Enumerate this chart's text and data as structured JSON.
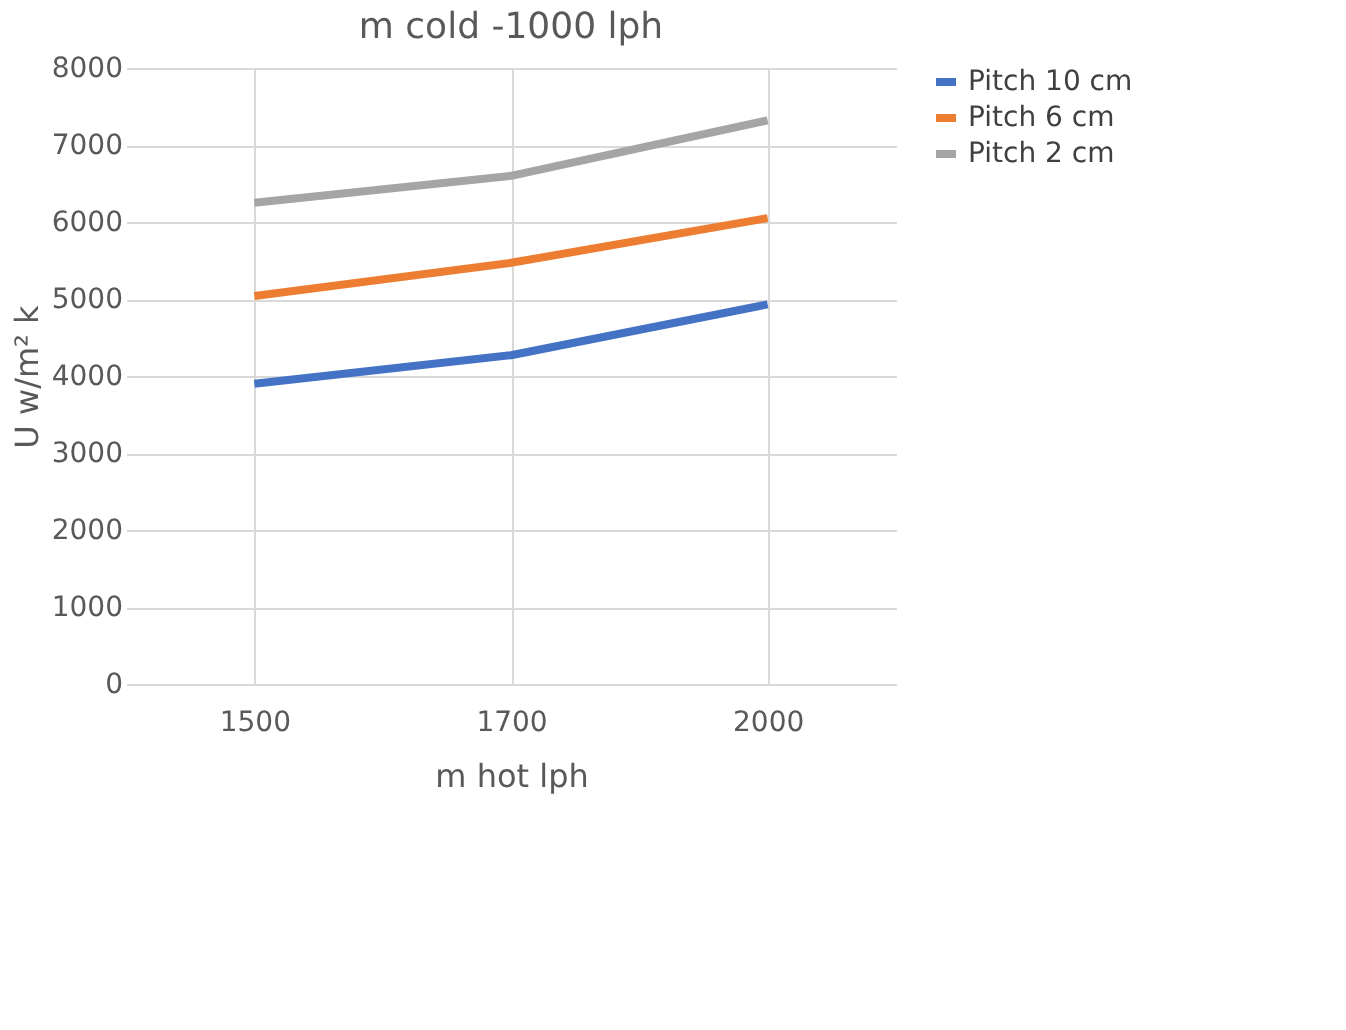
{
  "chart_data": {
    "type": "line",
    "title": "m cold -1000 lph",
    "xlabel": "m hot lph",
    "ylabel": "U  w/m² k",
    "categories": [
      "1500",
      "1700",
      "2000"
    ],
    "series": [
      {
        "name": "Pitch 10 cm",
        "color": "#4472c4",
        "values": [
          3900,
          4270,
          4930
        ]
      },
      {
        "name": "Pitch 6 cm",
        "color": "#ed7d31",
        "values": [
          5040,
          5470,
          6050
        ]
      },
      {
        "name": "Pitch 2 cm",
        "color": "#a5a5a5",
        "values": [
          6250,
          6600,
          7320
        ]
      }
    ],
    "ylim": [
      0,
      8000
    ],
    "yticks": [
      0,
      1000,
      2000,
      3000,
      4000,
      5000,
      6000,
      7000,
      8000
    ],
    "grid": true,
    "legend": "right",
    "marker": "none",
    "line_style": "solid"
  }
}
